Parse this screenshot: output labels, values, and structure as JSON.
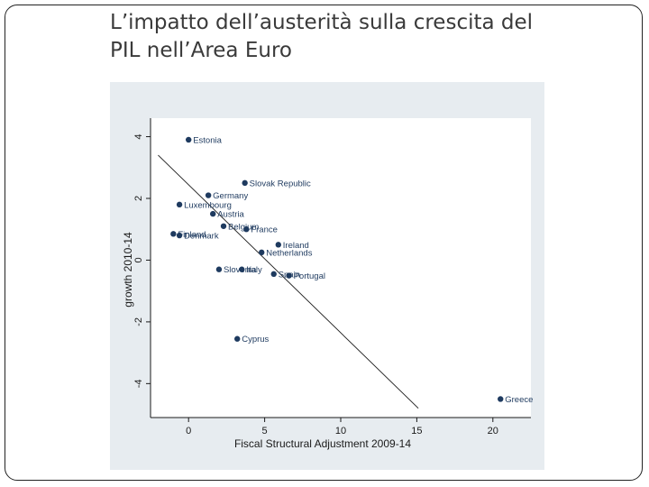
{
  "slide": {
    "title_line1": "L’impatto dell’austerità sulla crescita del",
    "title_line2": "PIL nell’Area Euro"
  },
  "chart_data": {
    "type": "scatter",
    "xlabel": "Fiscal Structural Adjustment 2009-14",
    "ylabel": "growth 2010-14",
    "xlim": [
      -2.5,
      22.5
    ],
    "ylim": [
      -5.1,
      4.6
    ],
    "xticks": [
      "0",
      "5",
      "10",
      "15",
      "20"
    ],
    "yticks": [
      "-4",
      "-2",
      "0",
      "2",
      "4"
    ],
    "grid": false,
    "marker_color": "#1e3a5f",
    "points": [
      {
        "label": "Estonia",
        "x": 0.0,
        "y": 3.9
      },
      {
        "label": "Slovak Republic",
        "x": 3.7,
        "y": 2.5
      },
      {
        "label": "Germany",
        "x": 1.3,
        "y": 2.1
      },
      {
        "label": "Luxembourg",
        "x": -0.6,
        "y": 1.8
      },
      {
        "label": "Austria",
        "x": 1.6,
        "y": 1.5
      },
      {
        "label": "Belgium",
        "x": 2.3,
        "y": 1.1
      },
      {
        "label": "France",
        "x": 3.8,
        "y": 1.0
      },
      {
        "label": "Finland",
        "x": -1.0,
        "y": 0.85
      },
      {
        "label": "Denmark",
        "x": -0.6,
        "y": 0.8
      },
      {
        "label": "Ireland",
        "x": 5.9,
        "y": 0.5
      },
      {
        "label": "Netherlands",
        "x": 4.8,
        "y": 0.25
      },
      {
        "label": "Slovenia",
        "x": 2.0,
        "y": -0.3
      },
      {
        "label": "Italy",
        "x": 3.5,
        "y": -0.3
      },
      {
        "label": "Spain",
        "x": 5.6,
        "y": -0.45
      },
      {
        "label": "Portugal",
        "x": 6.6,
        "y": -0.5
      },
      {
        "label": "Cyprus",
        "x": 3.2,
        "y": -2.55
      },
      {
        "label": "Greece",
        "x": 20.5,
        "y": -4.5
      }
    ],
    "fit_line": {
      "x": [
        -2.0,
        15.1
      ],
      "y": [
        3.4,
        -4.8
      ]
    }
  }
}
